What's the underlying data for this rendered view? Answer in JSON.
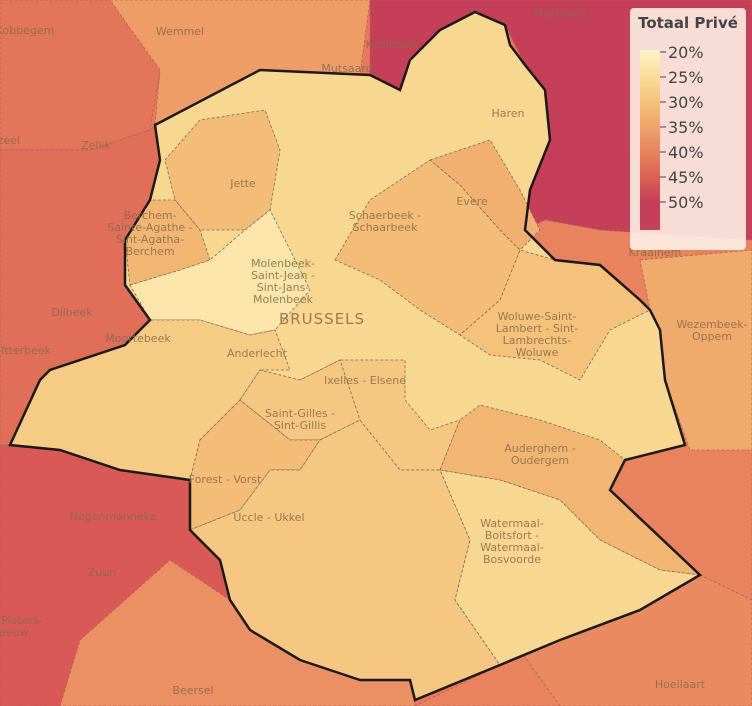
{
  "legend": {
    "title": "Totaal Privé",
    "ticks": [
      {
        "value": 20,
        "label": "20%"
      },
      {
        "value": 25,
        "label": "25%"
      },
      {
        "value": 30,
        "label": "30%"
      },
      {
        "value": 35,
        "label": "35%"
      },
      {
        "value": 40,
        "label": "40%"
      },
      {
        "value": 45,
        "label": "45%"
      },
      {
        "value": 50,
        "label": "50%"
      }
    ],
    "colors": [
      "#fdf3c8",
      "#f9dc96",
      "#f4c27a",
      "#efa469",
      "#e8835e",
      "#dc6055",
      "#c63f58"
    ]
  },
  "regions": [
    {
      "label": [
        "Kobbegem"
      ],
      "value": 42
    },
    {
      "label": [
        "Wemmel"
      ],
      "value": 36
    },
    {
      "label": [
        "Machelen"
      ],
      "value": 50
    },
    {
      "label": [
        "Dilbeek"
      ],
      "value": 43
    },
    {
      "label": [
        "Negenmanneke"
      ],
      "value": 46
    },
    {
      "label": [
        "Beersel"
      ],
      "value": 38
    },
    {
      "label": [
        "Kraainem"
      ],
      "value": 40
    },
    {
      "label": [
        "Wezembeek-",
        "Oppem"
      ],
      "value": 34
    },
    {
      "label": [
        "Hoeilaart"
      ],
      "value": 39
    },
    {
      "label": [
        "BRUSSELS"
      ],
      "value": 26
    },
    {
      "label": [
        "Jette"
      ],
      "value": 31
    },
    {
      "label": [
        "Berchem-",
        "Sainte-Agathe -",
        "Sint-Agatha-",
        "Berchem"
      ],
      "value": 32
    },
    {
      "label": [
        "Molenbeek-",
        "Saint-Jean -",
        "Sint-Jans-",
        "Molenbeek"
      ],
      "value": 23
    },
    {
      "label": [
        "Schaerbeek -",
        "Schaarbeek"
      ],
      "value": 31
    },
    {
      "label": [
        "Evere"
      ],
      "value": 33
    },
    {
      "label": [
        "Woluwe-Saint-",
        "Lambert - Sint-",
        "Lambrechts-",
        "Woluwe"
      ],
      "value": 30
    },
    {
      "label": [
        "Anderlecht"
      ],
      "value": 28
    },
    {
      "label": [
        "Ixelles - Elsene"
      ],
      "value": 29
    },
    {
      "label": [
        "Saint-Gilles -",
        "Sint-Gillis"
      ],
      "value": 29
    },
    {
      "label": [
        "Forest - Vorst"
      ],
      "value": 31
    },
    {
      "label": [
        "Uccle - Ukkel"
      ],
      "value": 29
    },
    {
      "label": [
        "Auderghem -",
        "Oudergem"
      ],
      "value": 32
    },
    {
      "label": [
        "Watermaal-",
        "Boitsfort -",
        "Watermaal-",
        "Bosvoorde"
      ],
      "value": 26
    }
  ],
  "places": [
    "Koningslo",
    "Mutsaard",
    "Haren",
    "Zellik",
    "zeel",
    "Itterbeek",
    "Moortebeek",
    "Zuun",
    "Pieters-",
    "eeuw"
  ]
}
